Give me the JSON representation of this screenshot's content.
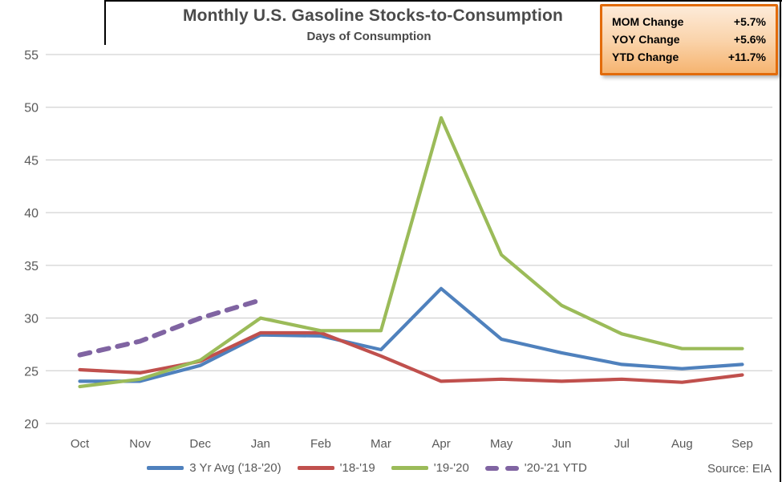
{
  "chart_data": {
    "type": "line",
    "title": "Monthly U.S. Gasoline Stocks-to-Consumption",
    "subtitle": "Days of Consumption",
    "xlabel": "",
    "ylabel": "",
    "categories": [
      "Oct",
      "Nov",
      "Dec",
      "Jan",
      "Feb",
      "Mar",
      "Apr",
      "May",
      "Jun",
      "Jul",
      "Aug",
      "Sep"
    ],
    "ylim": [
      20,
      55
    ],
    "ytick_step": 5,
    "grid": "horizontal-only",
    "legend_position": "bottom",
    "series": [
      {
        "name": "3 Yr Avg ('18-'20)",
        "color": "#4F81BD",
        "dash": false,
        "values": [
          24.0,
          24.0,
          25.5,
          28.4,
          28.3,
          27.0,
          32.8,
          28.0,
          26.7,
          25.6,
          25.2,
          25.6
        ]
      },
      {
        "name": "'18-'19",
        "color": "#C0504D",
        "dash": false,
        "values": [
          25.1,
          24.8,
          25.9,
          28.6,
          28.6,
          26.4,
          24.0,
          24.2,
          24.0,
          24.2,
          23.9,
          24.6
        ]
      },
      {
        "name": "'19-'20",
        "color": "#9BBB59",
        "dash": false,
        "values": [
          23.5,
          24.2,
          26.0,
          30.0,
          28.8,
          28.8,
          49.0,
          36.0,
          31.2,
          28.5,
          27.1,
          27.1
        ]
      },
      {
        "name": "'20-'21 YTD",
        "color": "#8064A2",
        "dash": true,
        "values": [
          26.5,
          27.8,
          30.0,
          31.7,
          null,
          null,
          null,
          null,
          null,
          null,
          null,
          null
        ]
      }
    ]
  },
  "stats_box": {
    "rows": [
      {
        "label": "MOM Change",
        "value": "+5.7%"
      },
      {
        "label": "YOY Change",
        "value": "+5.6%"
      },
      {
        "label": "YTD Change",
        "value": "+11.7%"
      }
    ],
    "border_color": "#E26B0A",
    "bg_top": "#FDEBD9",
    "bg_bottom": "#F6B470"
  },
  "source": "Source: EIA",
  "theme": {
    "text_color": "#595959",
    "grid_color": "#D3D3D3",
    "title_color": "#4A4A4A",
    "frame_color": "#000000",
    "background": "#FFFFFF"
  }
}
